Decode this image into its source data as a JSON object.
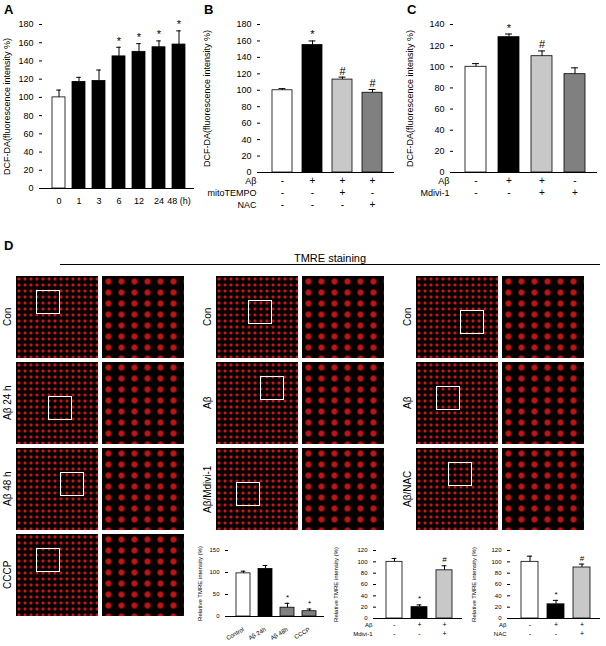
{
  "chart_data": [
    {
      "type": "bar",
      "title": "A",
      "ylabel": "DCF-DA(fluorescence intensity %)",
      "categories": [
        "0",
        "1",
        "3",
        "6",
        "12",
        "24",
        "48 (h)"
      ],
      "values": [
        100,
        117,
        118,
        145,
        150,
        155,
        158
      ],
      "errors": [
        8,
        5,
        12,
        10,
        9,
        7,
        15
      ],
      "annotations": [
        null,
        null,
        null,
        "*",
        "*",
        "*",
        "*"
      ],
      "colors": [
        "#ffffff",
        "#000000",
        "#000000",
        "#000000",
        "#000000",
        "#000000",
        "#000000"
      ],
      "ylim": [
        0,
        180
      ],
      "yticks": [
        0,
        20,
        40,
        60,
        80,
        100,
        120,
        140,
        160,
        180
      ]
    },
    {
      "type": "bar",
      "title": "B",
      "ylabel": "DCF-DA(fluorescence intensity %)",
      "categories": [
        null,
        null,
        null,
        null
      ],
      "values": [
        100,
        155,
        113,
        97
      ],
      "errors": [
        2,
        5,
        3,
        4
      ],
      "annotations": [
        null,
        "*",
        "#",
        "#"
      ],
      "colors": [
        "#ffffff",
        "#000000",
        "#c8c8c8",
        "#808080"
      ],
      "conditions": [
        {
          "name": "Aβ",
          "values": [
            "-",
            "+",
            "+",
            "+"
          ]
        },
        {
          "name": "mitoTEMPO",
          "values": [
            "-",
            "-",
            "+",
            "-"
          ]
        },
        {
          "name": "NAC",
          "values": [
            "-",
            "-",
            "-",
            "+"
          ]
        }
      ],
      "ylim": [
        0,
        180
      ],
      "yticks": [
        0,
        20,
        40,
        60,
        80,
        100,
        120,
        140,
        160,
        180
      ]
    },
    {
      "type": "bar",
      "title": "C",
      "ylabel": "DCF-DA(fluorescence intensity %)",
      "categories": [
        null,
        null,
        null,
        null
      ],
      "values": [
        100,
        128,
        110,
        93
      ],
      "errors": [
        3,
        3,
        5,
        6
      ],
      "annotations": [
        null,
        "*",
        "#",
        null
      ],
      "colors": [
        "#ffffff",
        "#000000",
        "#c8c8c8",
        "#808080"
      ],
      "conditions": [
        {
          "name": "Aβ",
          "values": [
            "-",
            "+",
            "+",
            "-"
          ]
        },
        {
          "name": "Mdivi-1",
          "values": [
            "-",
            "-",
            "+",
            "+"
          ]
        }
      ],
      "ylim": [
        0,
        140
      ],
      "yticks": [
        0,
        20,
        40,
        60,
        80,
        100,
        120,
        140
      ]
    },
    {
      "type": "bar",
      "ylabel": "Relative TMRE intensity (%)",
      "categories": [
        "Control",
        "Aβ 24h",
        "Aβ 48h",
        "CCCP"
      ],
      "values": [
        98,
        108,
        20,
        12
      ],
      "errors": [
        5,
        8,
        10,
        5
      ],
      "annotations": [
        null,
        null,
        "*",
        "*"
      ],
      "colors": [
        "#ffffff",
        "#000000",
        "#808080",
        "#808080"
      ],
      "ylim": [
        0,
        150
      ],
      "yticks": [
        0,
        50,
        100,
        150
      ]
    },
    {
      "type": "bar",
      "ylabel": "Relative TMRE intensity (%)",
      "categories": [
        null,
        null,
        null
      ],
      "values": [
        100,
        20,
        85
      ],
      "errors": [
        6,
        4,
        8
      ],
      "annotations": [
        null,
        "*",
        "#"
      ],
      "colors": [
        "#ffffff",
        "#000000",
        "#c8c8c8"
      ],
      "conditions": [
        {
          "name": "Aβ",
          "values": [
            "-",
            "+",
            "+"
          ]
        },
        {
          "name": "Mdivi-1",
          "values": [
            "-",
            "-",
            "+"
          ]
        }
      ],
      "ylim": [
        0,
        120
      ],
      "yticks": [
        0,
        20,
        40,
        60,
        80,
        100,
        120
      ]
    },
    {
      "type": "bar",
      "ylabel": "Relative TMRE intensity (%)",
      "categories": [
        null,
        null,
        null
      ],
      "values": [
        100,
        25,
        90
      ],
      "errors": [
        10,
        7,
        6
      ],
      "annotations": [
        null,
        "*",
        "#"
      ],
      "colors": [
        "#ffffff",
        "#000000",
        "#c8c8c8"
      ],
      "conditions": [
        {
          "name": "Aβ",
          "values": [
            "-",
            "+",
            "+"
          ]
        },
        {
          "name": "NAC",
          "values": [
            "-",
            "-",
            "+"
          ]
        }
      ],
      "ylim": [
        0,
        120
      ],
      "yticks": [
        0,
        20,
        40,
        60,
        80,
        100,
        120
      ]
    }
  ],
  "panel_D": {
    "title": "D",
    "heading": "TMRE staining",
    "columns": [
      {
        "rows": [
          "Con",
          "Aβ 24 h",
          "Aβ 48 h",
          "CCCP"
        ]
      },
      {
        "rows": [
          "Con",
          "Aβ",
          "Aβ/Mdivi-1"
        ]
      },
      {
        "rows": [
          "Con",
          "Aβ",
          "Aβ/NAC"
        ]
      }
    ]
  }
}
